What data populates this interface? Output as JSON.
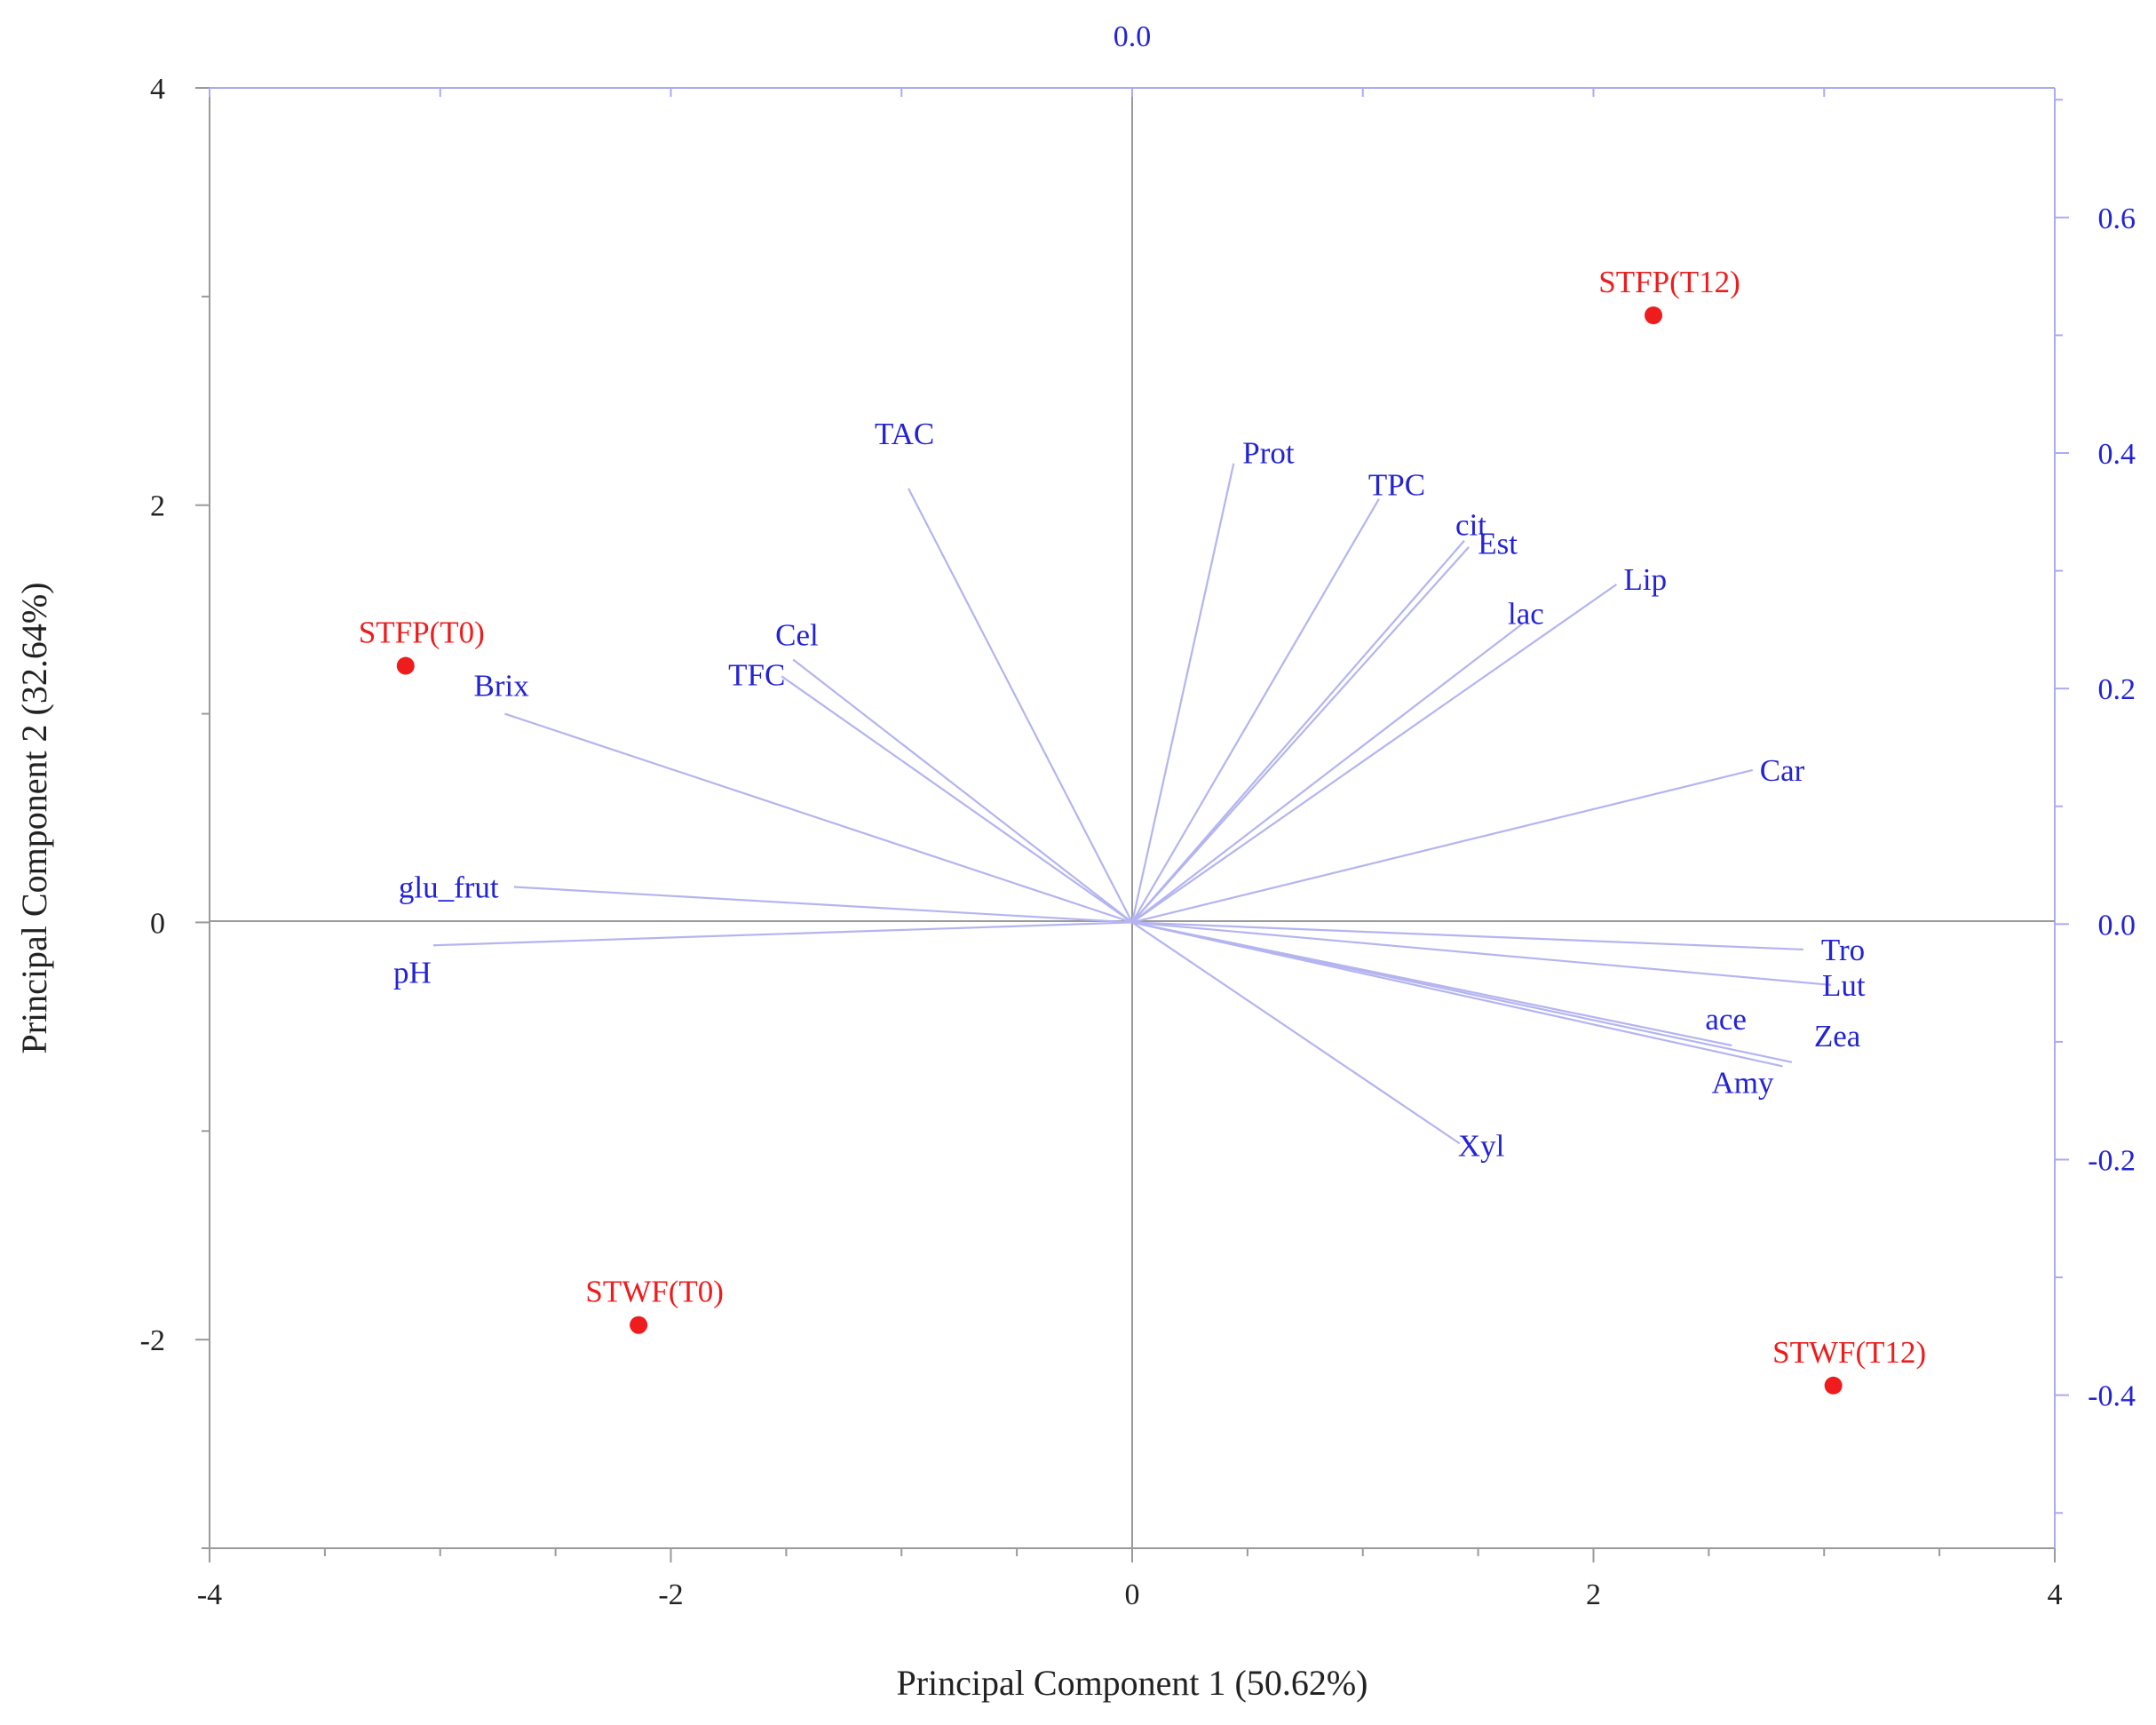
{
  "chart_data": {
    "type": "scatter",
    "subtype": "pca-biplot",
    "xlabel": "Principal Component 1 (50.62%)",
    "ylabel": "Principal Component 2 (32.64%)",
    "xlim": [
      -4,
      4
    ],
    "ylim": [
      -3,
      4
    ],
    "x_ticks": [
      "-4",
      "-2",
      "0",
      "2",
      "4"
    ],
    "y_ticks": [
      "-2",
      "0",
      "2",
      "4"
    ],
    "secondary_ylim": [
      -0.53,
      0.71
    ],
    "secondary_y_ticks": [
      "-0.4",
      "-0.2",
      "0.0",
      "0.2",
      "0.4",
      "0.6"
    ],
    "secondary_x_label": "0.0",
    "scores": [
      {
        "label": "STFP(T0)",
        "x": -3.15,
        "y": 1.23
      },
      {
        "label": "STFP(T12)",
        "x": 2.26,
        "y": 2.91
      },
      {
        "label": "STWF(T0)",
        "x": -2.14,
        "y": -1.93
      },
      {
        "label": "STWF(T12)",
        "x": 3.04,
        "y": -2.22
      }
    ],
    "loadings": [
      {
        "label": "TAC",
        "x": -0.97,
        "y": 2.08
      },
      {
        "label": "Prot",
        "x": 0.44,
        "y": 2.2
      },
      {
        "label": "TPC",
        "x": 1.07,
        "y": 2.03
      },
      {
        "label": "cit",
        "x": 1.44,
        "y": 1.83
      },
      {
        "label": "Est",
        "x": 1.46,
        "y": 1.8
      },
      {
        "label": "lac",
        "x": 1.69,
        "y": 1.43
      },
      {
        "label": "Lip",
        "x": 2.1,
        "y": 1.62
      },
      {
        "label": "Cel",
        "x": -1.47,
        "y": 1.26
      },
      {
        "label": "TFC",
        "x": -1.52,
        "y": 1.18
      },
      {
        "label": "Brix",
        "x": -2.72,
        "y": 1.0
      },
      {
        "label": "Car",
        "x": 2.69,
        "y": 0.73
      },
      {
        "label": "glu_frut",
        "x": -2.68,
        "y": 0.17
      },
      {
        "label": "pH",
        "x": -3.03,
        "y": -0.11
      },
      {
        "label": "Tro",
        "x": 2.91,
        "y": -0.13
      },
      {
        "label": "Lut",
        "x": 3.03,
        "y": -0.3
      },
      {
        "label": "ace",
        "x": 2.6,
        "y": -0.59
      },
      {
        "label": "Zea",
        "x": 2.86,
        "y": -0.67
      },
      {
        "label": "Amy",
        "x": 2.82,
        "y": -0.69
      },
      {
        "label": "Xyl",
        "x": 1.42,
        "y": -1.06
      }
    ]
  },
  "colors": {
    "axis": "#9a9a9a",
    "secondary_axis": "#aaaaf5",
    "loading_line": "#b4b4f0",
    "loading_text": "#2323d6",
    "score_point": "#ee1c1c",
    "text": "#222222"
  }
}
